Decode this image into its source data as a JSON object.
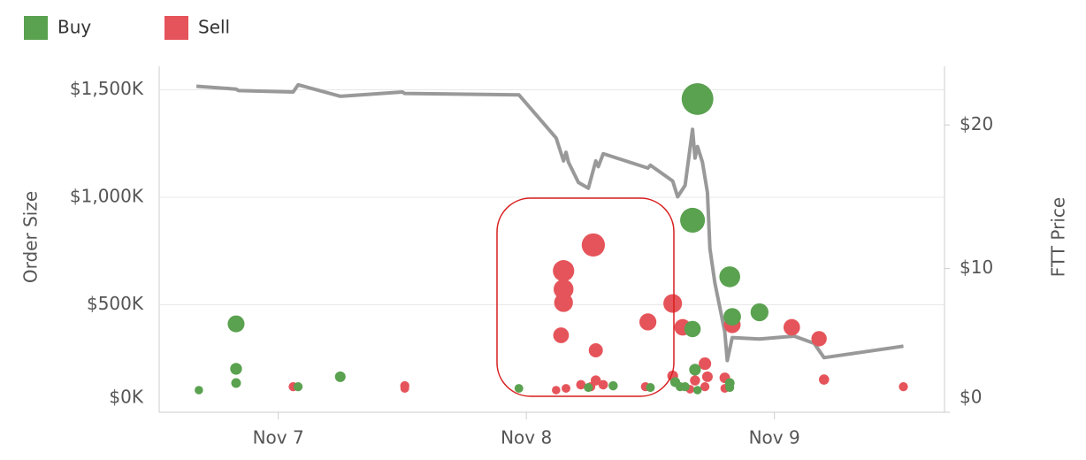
{
  "chart_data": {
    "type": "bubble",
    "xlabel": null,
    "ylabel": "Order Size",
    "y2label": "FTT Price",
    "xlim": [
      6.52,
      9.65
    ],
    "xticks": [
      {
        "value": 7,
        "label": "Nov 7"
      },
      {
        "value": 8,
        "label": "Nov 8"
      },
      {
        "value": 9,
        "label": "Nov 9"
      }
    ],
    "ylim": [
      0,
      1650
    ],
    "yticks": [
      {
        "value": 0,
        "label": "$0K"
      },
      {
        "value": 500,
        "label": "$500K"
      },
      {
        "value": 1000,
        "label": "$1,000K"
      },
      {
        "value": 1500,
        "label": "$1,500K"
      }
    ],
    "y2lim": [
      0,
      24.7
    ],
    "y2ticks": [
      {
        "value": 0,
        "label": "$0"
      },
      {
        "value": 10,
        "label": "$10"
      },
      {
        "value": 20,
        "label": "$20"
      }
    ],
    "grid": true,
    "legend": "top-left",
    "series": [
      {
        "name": "Buy",
        "color": "#5aa150",
        "x": [
          6.68,
          6.83,
          6.83,
          6.83,
          7.08,
          7.25,
          7.97,
          8.25,
          8.35,
          8.5,
          8.69,
          8.67,
          8.67,
          8.68,
          8.6,
          8.62,
          8.64,
          8.69,
          8.82,
          8.83,
          8.94,
          8.82,
          8.82
        ],
        "values": [
          103,
          411,
          202,
          136,
          119,
          165,
          111,
          115,
          123,
          115,
          1457,
          893,
          387,
          198,
          140,
          119,
          119,
          103,
          630,
          444,
          465,
          136,
          115
        ]
      },
      {
        "name": "Sell",
        "color": "#e5545a",
        "x": [
          7.06,
          7.51,
          7.51,
          8.15,
          8.15,
          8.15,
          8.27,
          8.14,
          8.28,
          8.12,
          8.16,
          8.22,
          8.26,
          8.28,
          8.31,
          8.49,
          8.59,
          8.63,
          8.72,
          8.73,
          8.68,
          8.59,
          8.66,
          8.72,
          8.8,
          8.83,
          8.8,
          9.07,
          9.18,
          9.2,
          9.52,
          8.48
        ],
        "values": [
          119,
          123,
          111,
          658,
          572,
          510,
          778,
          358,
          288,
          103,
          111,
          128,
          119,
          148,
          128,
          420,
          506,
          395,
          226,
          165,
          148,
          169,
          107,
          119,
          160,
          407,
          111,
          395,
          342,
          152,
          119,
          119
        ]
      }
    ],
    "price": {
      "color": "#999999",
      "axis": "y2",
      "x": [
        6.67,
        6.83,
        6.84,
        7.06,
        7.08,
        7.25,
        7.5,
        7.51,
        7.97,
        8.12,
        8.15,
        8.16,
        8.17,
        8.21,
        8.25,
        8.28,
        8.29,
        8.31,
        8.49,
        8.5,
        8.59,
        8.61,
        8.64,
        8.65,
        8.67,
        8.68,
        8.69,
        8.71,
        8.73,
        8.74,
        8.76,
        8.8,
        8.81,
        8.83,
        8.94,
        9.08,
        9.16,
        9.2,
        9.52
      ],
      "values": [
        22.7,
        22.5,
        22.4,
        22.3,
        22.8,
        22.0,
        22.3,
        22.2,
        22.1,
        19.1,
        17.5,
        18.1,
        17.4,
        16.0,
        15.6,
        17.5,
        17.1,
        18.0,
        17.0,
        17.2,
        16.1,
        15.0,
        15.8,
        17.1,
        19.7,
        17.7,
        18.5,
        17.4,
        15.3,
        11.4,
        9.0,
        5.6,
        3.6,
        5.2,
        5.1,
        5.3,
        4.8,
        3.8,
        4.6
      ]
    }
  }
}
